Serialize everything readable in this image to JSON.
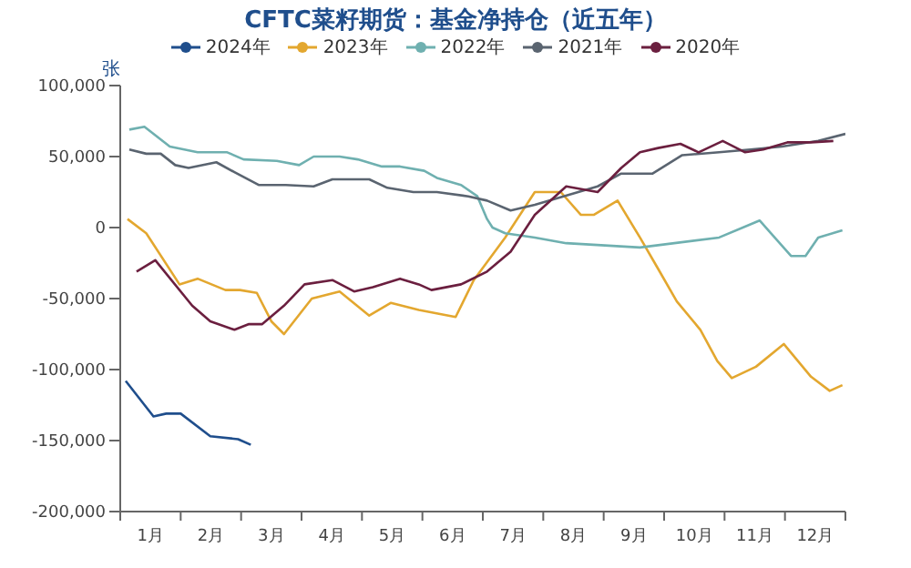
{
  "chart_data": {
    "type": "line",
    "title": "CFTC菜籽期货：基金净持仓（近五年）",
    "ylabel": "张",
    "legend": "top",
    "marker": "none",
    "grid": false,
    "xlim": [
      0,
      12
    ],
    "xticks": [
      {
        "value": 0,
        "label": null
      },
      {
        "value": 0.5,
        "label": "1月"
      },
      {
        "value": 1,
        "label": null
      },
      {
        "value": 1.5,
        "label": "2月"
      },
      {
        "value": 2,
        "label": null
      },
      {
        "value": 2.5,
        "label": "3月"
      },
      {
        "value": 3,
        "label": null
      },
      {
        "value": 3.5,
        "label": "4月"
      },
      {
        "value": 4,
        "label": null
      },
      {
        "value": 4.5,
        "label": "5月"
      },
      {
        "value": 5,
        "label": null
      },
      {
        "value": 5.5,
        "label": "6月"
      },
      {
        "value": 6,
        "label": null
      },
      {
        "value": 6.5,
        "label": "7月"
      },
      {
        "value": 7,
        "label": null
      },
      {
        "value": 7.5,
        "label": "8月"
      },
      {
        "value": 8,
        "label": null
      },
      {
        "value": 8.5,
        "label": "9月"
      },
      {
        "value": 9,
        "label": null
      },
      {
        "value": 9.5,
        "label": "10月"
      },
      {
        "value": 10,
        "label": null
      },
      {
        "value": 10.5,
        "label": "11月"
      },
      {
        "value": 11,
        "label": null
      },
      {
        "value": 11.5,
        "label": "12月"
      },
      {
        "value": 12,
        "label": null
      }
    ],
    "ylim": [
      -200000,
      100000
    ],
    "yticks": [
      {
        "value": -200000,
        "label": "-200,000"
      },
      {
        "value": -150000,
        "label": "-150,000"
      },
      {
        "value": -100000,
        "label": "-100,000"
      },
      {
        "value": -50000,
        "label": "-50,000"
      },
      {
        "value": 0,
        "label": "0"
      },
      {
        "value": 50000,
        "label": "50,000"
      },
      {
        "value": 100000,
        "label": "100,000"
      }
    ],
    "series": [
      {
        "name": "2024年",
        "color": "#1f4e8c",
        "x": [
          0.09,
          0.55,
          0.76,
          1.0,
          1.49,
          1.95,
          2.16
        ],
        "values": [
          -108000,
          -133000,
          -131000,
          -131000,
          -147000,
          -149000,
          -153000
        ]
      },
      {
        "name": "2023年",
        "color": "#e3a72f",
        "x": [
          0.12,
          0.43,
          0.98,
          1.28,
          1.74,
          1.98,
          2.26,
          2.5,
          2.71,
          3.17,
          3.63,
          4.12,
          4.48,
          4.94,
          5.55,
          5.85,
          6.37,
          6.86,
          7.29,
          7.62,
          7.84,
          8.23,
          8.6,
          8.9,
          9.21,
          9.6,
          9.88,
          10.12,
          10.52,
          10.98,
          11.43,
          11.74,
          11.95
        ],
        "values": [
          6000,
          -4000,
          -40000,
          -36000,
          -44000,
          -44000,
          -46000,
          -66000,
          -75000,
          -50000,
          -45000,
          -62000,
          -53000,
          -58000,
          -63000,
          -37000,
          -7000,
          25000,
          25000,
          9000,
          9000,
          19000,
          -7000,
          -29000,
          -52000,
          -72000,
          -94000,
          -106000,
          -98000,
          -82000,
          -105000,
          -115000,
          -111000
        ]
      },
      {
        "name": "2022年",
        "color": "#6fb0b0",
        "x": [
          0.15,
          0.4,
          0.82,
          1.28,
          1.77,
          2.04,
          2.59,
          2.96,
          3.2,
          3.63,
          3.93,
          4.33,
          4.63,
          5.03,
          5.24,
          5.64,
          5.91,
          6.07,
          6.16,
          6.37,
          6.86,
          7.38,
          8.6,
          9.91,
          10.58,
          11.1,
          11.34,
          11.55,
          11.95
        ],
        "values": [
          69000,
          71000,
          57000,
          53000,
          53000,
          48000,
          47000,
          44000,
          50000,
          50000,
          48000,
          43000,
          43000,
          40000,
          35000,
          30000,
          22000,
          6000,
          0,
          -4000,
          -7000,
          -11000,
          -14000,
          -7000,
          5000,
          -20000,
          -20000,
          -7000,
          -2000
        ]
      },
      {
        "name": "2021年",
        "color": "#5a6470",
        "x": [
          0.15,
          0.43,
          0.67,
          0.91,
          1.13,
          1.59,
          1.89,
          2.29,
          2.74,
          3.2,
          3.51,
          4.12,
          4.42,
          4.85,
          5.24,
          5.76,
          6.07,
          6.46,
          6.86,
          7.9,
          8.29,
          8.81,
          9.3,
          9.91,
          10.43,
          10.95,
          11.55,
          12.0
        ],
        "values": [
          55000,
          52000,
          52000,
          44000,
          42000,
          46000,
          39000,
          30000,
          30000,
          29000,
          34000,
          34000,
          28000,
          25000,
          25000,
          22000,
          19000,
          12000,
          16000,
          29000,
          38000,
          38000,
          51000,
          53000,
          55000,
          57000,
          61000,
          66000
        ]
      },
      {
        "name": "2020年",
        "color": "#6b1f3f",
        "x": [
          0.27,
          0.58,
          1.19,
          1.49,
          1.89,
          2.13,
          2.35,
          2.71,
          3.05,
          3.51,
          3.87,
          4.18,
          4.63,
          4.94,
          5.15,
          5.64,
          6.07,
          6.46,
          6.86,
          7.38,
          7.9,
          8.29,
          8.6,
          8.9,
          9.27,
          9.57,
          9.97,
          10.34,
          10.64,
          11.04,
          11.43,
          11.8
        ],
        "values": [
          -31000,
          -23000,
          -55000,
          -66000,
          -72000,
          -68000,
          -68000,
          -55000,
          -40000,
          -37000,
          -45000,
          -42000,
          -36000,
          -40000,
          -44000,
          -40000,
          -31000,
          -17000,
          9000,
          29000,
          25000,
          42000,
          53000,
          56000,
          59000,
          53000,
          61000,
          53000,
          55000,
          60000,
          60000,
          61000
        ]
      }
    ]
  }
}
